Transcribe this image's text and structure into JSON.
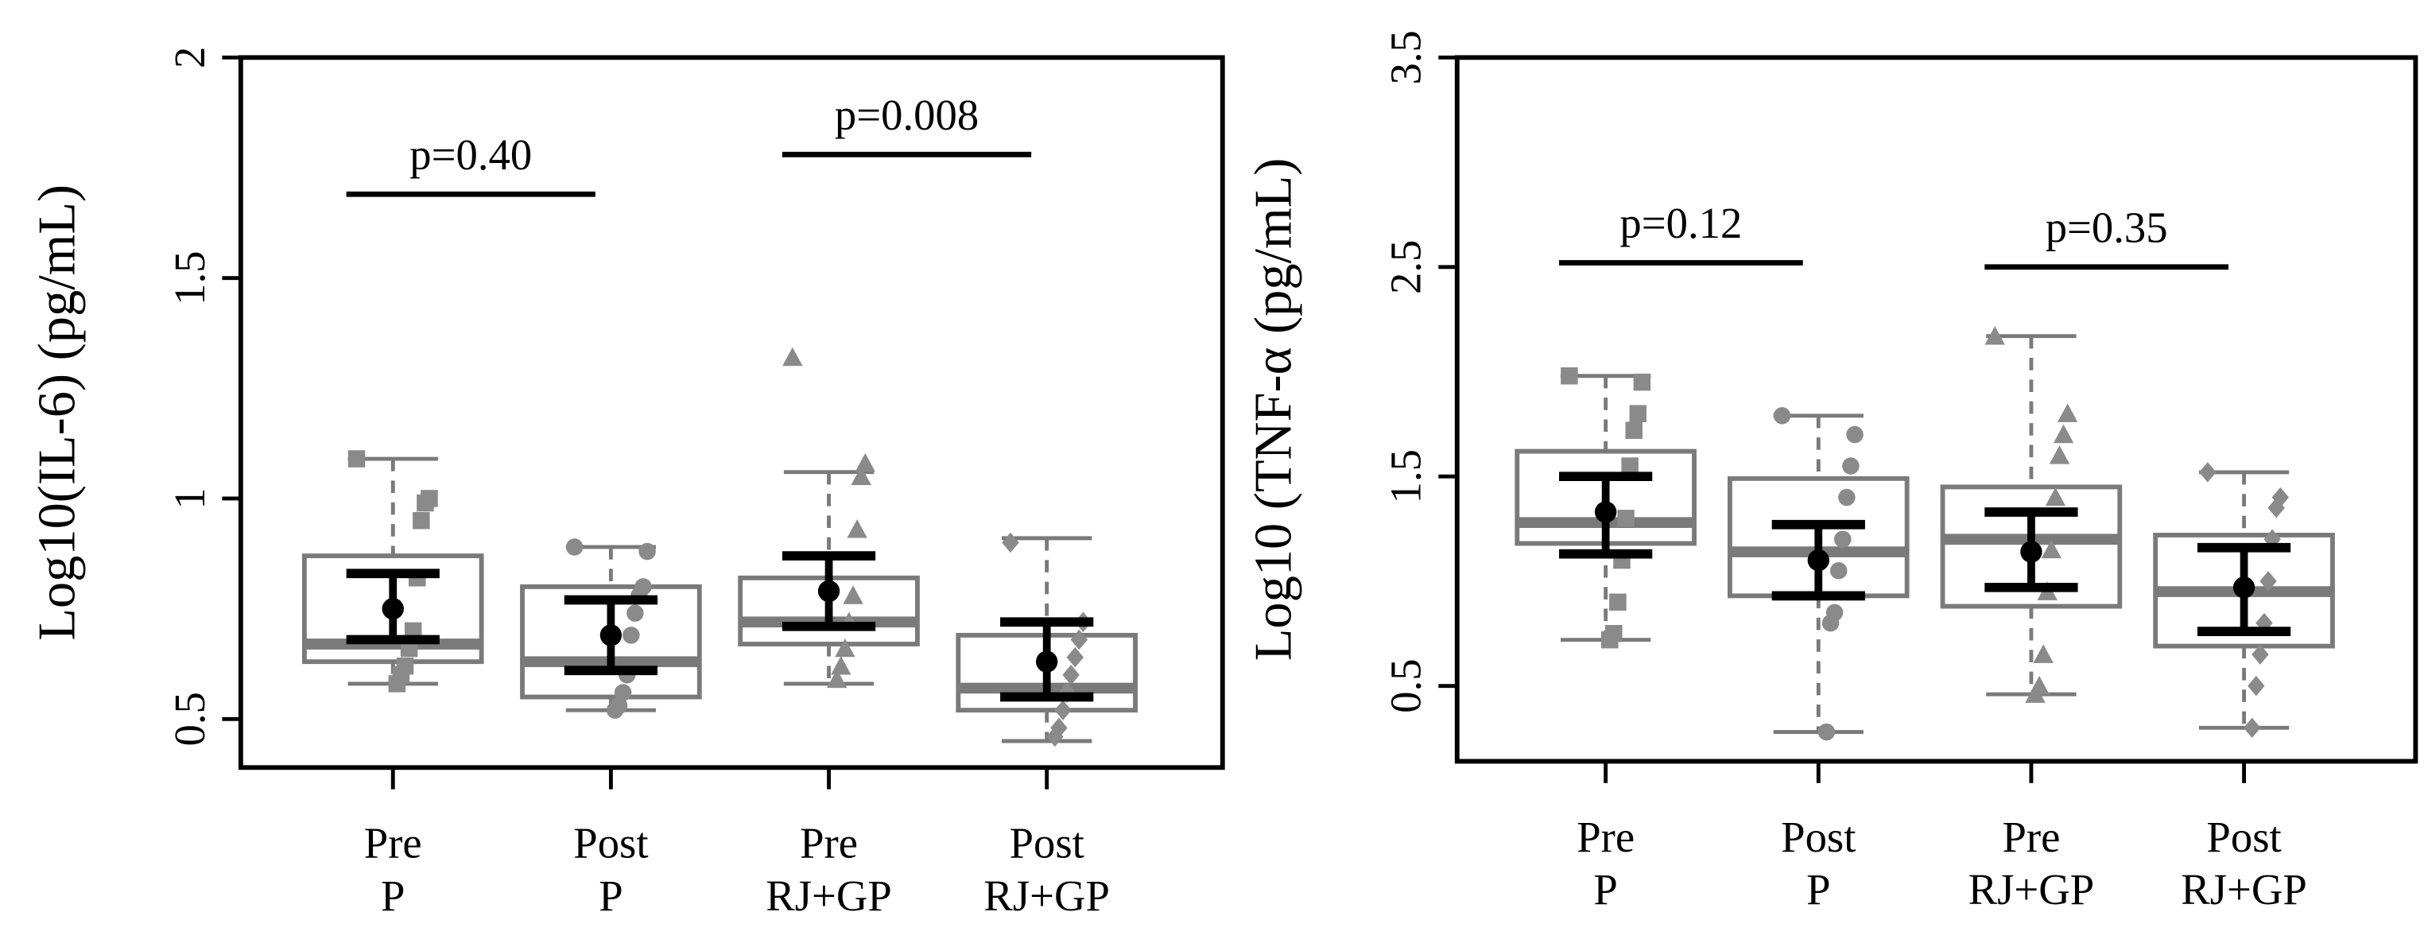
{
  "chart_data": [
    {
      "type": "box",
      "ylabel": "Log10(IL-6) (pg/mL)",
      "ylim": [
        0.39,
        2.0
      ],
      "yticks": [
        0.5,
        1.0,
        1.5,
        2.0
      ],
      "yticks_labels_note_free": null,
      "categories": [
        [
          "Pre",
          "P"
        ],
        [
          "Post",
          "P"
        ],
        [
          "Pre",
          "RJ+GP"
        ],
        [
          "Post",
          "RJ+GP"
        ]
      ],
      "markers": [
        "square",
        "circle",
        "triangle",
        "diamond"
      ],
      "box_color": "#7a7a7a",
      "point_color": "#8a8a8a",
      "mean_color": "#000000",
      "boxes": [
        {
          "low": 0.58,
          "q1": 0.63,
          "median": 0.67,
          "q3": 0.87,
          "high": 1.09,
          "mean": 0.75,
          "ci_low": 0.68,
          "ci_high": 0.83,
          "points": [
            1.09,
            1.0,
            0.99,
            0.95,
            0.82,
            0.7,
            0.66,
            0.62,
            0.6,
            0.58
          ]
        },
        {
          "low": 0.52,
          "q1": 0.55,
          "median": 0.63,
          "q3": 0.8,
          "high": 0.89,
          "mean": 0.69,
          "ci_low": 0.61,
          "ci_high": 0.77,
          "points": [
            0.89,
            0.88,
            0.8,
            0.78,
            0.74,
            0.69,
            0.6,
            0.56,
            0.53,
            0.52
          ]
        },
        {
          "low": 0.58,
          "q1": 0.67,
          "median": 0.72,
          "q3": 0.82,
          "high": 1.06,
          "mean": 0.79,
          "ci_low": 0.71,
          "ci_high": 0.87,
          "points": [
            1.32,
            1.08,
            1.05,
            0.93,
            0.78,
            0.72,
            0.66,
            0.62,
            0.59
          ]
        },
        {
          "low": 0.45,
          "q1": 0.52,
          "median": 0.57,
          "q3": 0.69,
          "high": 0.91,
          "mean": 0.63,
          "ci_low": 0.55,
          "ci_high": 0.72,
          "points": [
            0.9,
            0.72,
            0.68,
            0.64,
            0.6,
            0.56,
            0.52,
            0.48,
            0.46
          ]
        }
      ],
      "annotations": [
        {
          "text": "p=0.40",
          "y": 1.69
        },
        {
          "text": "p=0.008",
          "y": 1.78
        }
      ]
    },
    {
      "type": "box",
      "ylabel": "Log10 (TNF-α (pg/mL)",
      "ylim": [
        0.14,
        3.5
      ],
      "yticks": [
        0.5,
        1.5,
        2.5,
        3.5
      ],
      "categories": [
        [
          "Pre",
          "P"
        ],
        [
          "Post",
          "P"
        ],
        [
          "Pre",
          "RJ+GP"
        ],
        [
          "Post",
          "RJ+GP"
        ]
      ],
      "markers": [
        "square",
        "circle",
        "triangle",
        "diamond"
      ],
      "box_color": "#7a7a7a",
      "point_color": "#8a8a8a",
      "mean_color": "#000000",
      "boxes": [
        {
          "low": 0.72,
          "q1": 1.18,
          "median": 1.28,
          "q3": 1.62,
          "high": 1.98,
          "mean": 1.33,
          "ci_low": 1.13,
          "ci_high": 1.5,
          "points": [
            1.98,
            1.95,
            1.8,
            1.72,
            1.55,
            1.3,
            1.1,
            0.9,
            0.75,
            0.72
          ]
        },
        {
          "low": 0.28,
          "q1": 0.93,
          "median": 1.14,
          "q3": 1.49,
          "high": 1.79,
          "mean": 1.1,
          "ci_low": 0.93,
          "ci_high": 1.27,
          "points": [
            1.79,
            1.7,
            1.55,
            1.4,
            1.2,
            1.05,
            0.85,
            0.8,
            0.28
          ]
        },
        {
          "low": 0.46,
          "q1": 0.88,
          "median": 1.2,
          "q3": 1.45,
          "high": 2.17,
          "mean": 1.14,
          "ci_low": 0.97,
          "ci_high": 1.33,
          "points": [
            2.17,
            1.8,
            1.7,
            1.6,
            1.4,
            1.15,
            0.95,
            0.65,
            0.5,
            0.46
          ]
        },
        {
          "low": 0.3,
          "q1": 0.69,
          "median": 0.95,
          "q3": 1.22,
          "high": 1.52,
          "mean": 0.97,
          "ci_low": 0.76,
          "ci_high": 1.16,
          "points": [
            1.52,
            1.4,
            1.35,
            1.2,
            1.0,
            0.8,
            0.65,
            0.5,
            0.3
          ]
        }
      ],
      "annotations": [
        {
          "text": "p=0.12",
          "y": 2.52
        },
        {
          "text": "p=0.35",
          "y": 2.5
        }
      ]
    }
  ]
}
